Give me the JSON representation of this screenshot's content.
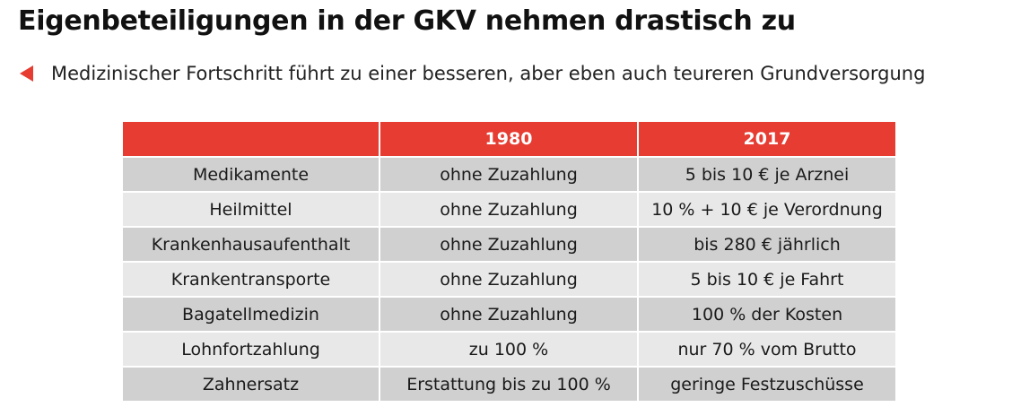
{
  "title": "Eigenbeteiligungen in der GKV nehmen drastisch zu",
  "bullet": {
    "icon": "triangle-left-icon",
    "text": "Medizinischer Fortschritt führt zu einer besseren, aber eben auch teureren Grundversorgung"
  },
  "colors": {
    "accent": "#e63c32",
    "row_dark": "#d0d0d0",
    "row_light": "#e8e8e8"
  },
  "table": {
    "headers": [
      "",
      "1980",
      "2017"
    ],
    "rows": [
      [
        "Medikamente",
        "ohne Zuzahlung",
        "5 bis 10 € je Arznei"
      ],
      [
        "Heilmittel",
        "ohne Zuzahlung",
        "10 % + 10 € je Verordnung"
      ],
      [
        "Krankenhausaufenthalt",
        "ohne Zuzahlung",
        "bis 280 € jährlich"
      ],
      [
        "Krankentransporte",
        "ohne Zuzahlung",
        "5 bis 10 € je Fahrt"
      ],
      [
        "Bagatellmedizin",
        "ohne Zuzahlung",
        "100 % der Kosten"
      ],
      [
        "Lohnfortzahlung",
        "zu 100 %",
        "nur 70 % vom Brutto"
      ],
      [
        "Zahnersatz",
        "Erstattung bis zu 100 %",
        "geringe Festzuschüsse"
      ]
    ]
  }
}
